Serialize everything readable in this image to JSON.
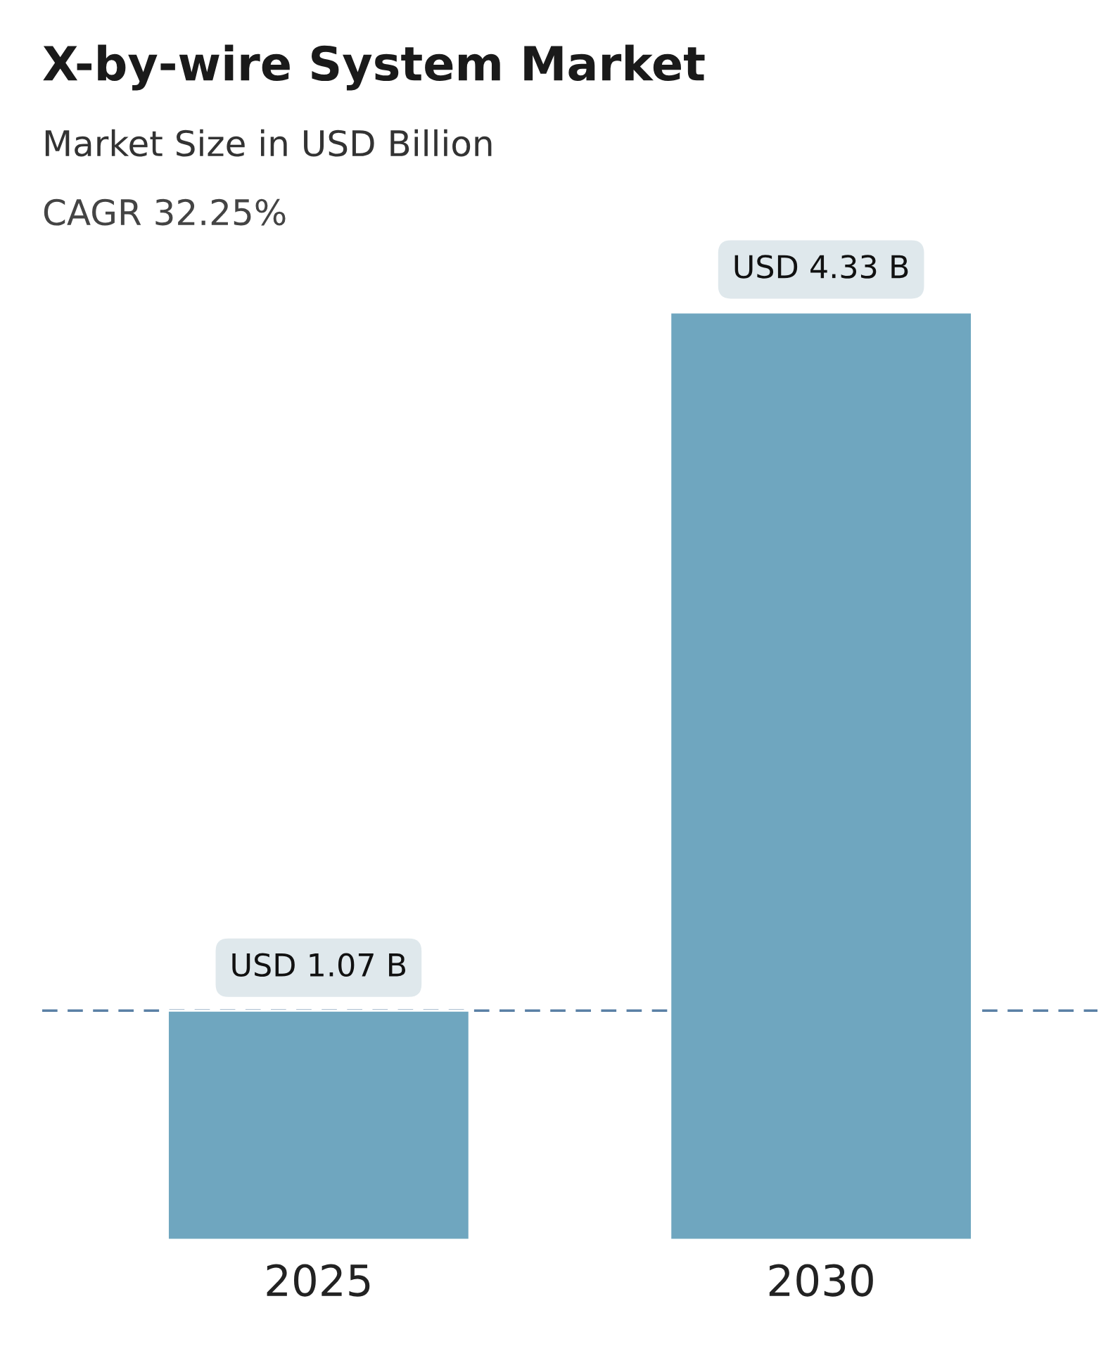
{
  "chart_data": {
    "type": "bar",
    "title": "X-by-wire System Market",
    "subtitle": "Market Size in USD Billion",
    "annotations": [
      "CAGR 32.25%"
    ],
    "categories": [
      "2025",
      "2030"
    ],
    "values": [
      1.07,
      4.33
    ],
    "color": "#6fa6bf",
    "value_labels": [
      "USD 1.07 B",
      "USD 4.33 B"
    ],
    "ref_lines": [
      {
        "axis": "y",
        "value": 1.07,
        "color": "#5a80a5",
        "line_style": "dashed"
      }
    ],
    "grid": false,
    "legend": false
  }
}
